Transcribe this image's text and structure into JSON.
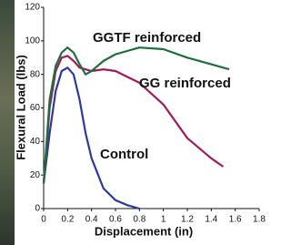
{
  "chart_data": {
    "type": "line",
    "x_label": "Displacement (in)",
    "y_label": "Flexural Load (lbs)",
    "xlim": [
      0,
      1.8
    ],
    "ylim": [
      0,
      120
    ],
    "xticks": [
      0,
      0.2,
      0.4,
      0.6,
      0.8,
      1,
      1.2,
      1.4,
      1.6,
      1.8
    ],
    "yticks": [
      0,
      20,
      40,
      60,
      80,
      100,
      120
    ],
    "series": [
      {
        "name": "Control",
        "color": "#2b3a9c",
        "x": [
          0,
          0.05,
          0.1,
          0.15,
          0.2,
          0.25,
          0.3,
          0.35,
          0.4,
          0.5,
          0.6,
          0.7,
          0.8
        ],
        "values": [
          15,
          45,
          70,
          82,
          84,
          80,
          65,
          45,
          30,
          12,
          5,
          2,
          0
        ]
      },
      {
        "name": "GG reinforced",
        "color": "#9b1d5e",
        "x": [
          0,
          0.05,
          0.1,
          0.15,
          0.2,
          0.25,
          0.3,
          0.4,
          0.5,
          0.6,
          0.8,
          1.0,
          1.2,
          1.4,
          1.5
        ],
        "values": [
          15,
          60,
          82,
          90,
          91,
          88,
          84,
          82,
          83,
          82,
          75,
          62,
          42,
          30,
          25
        ]
      },
      {
        "name": "GGTF reinforced",
        "color": "#1f6e3c",
        "x": [
          0,
          0.05,
          0.1,
          0.15,
          0.2,
          0.25,
          0.3,
          0.35,
          0.4,
          0.5,
          0.6,
          0.8,
          1.0,
          1.2,
          1.3,
          1.4,
          1.5,
          1.55
        ],
        "values": [
          15,
          65,
          85,
          93,
          96,
          93,
          86,
          80,
          82,
          88,
          92,
          96,
          95,
          90,
          88,
          86,
          84,
          83
        ]
      }
    ]
  }
}
